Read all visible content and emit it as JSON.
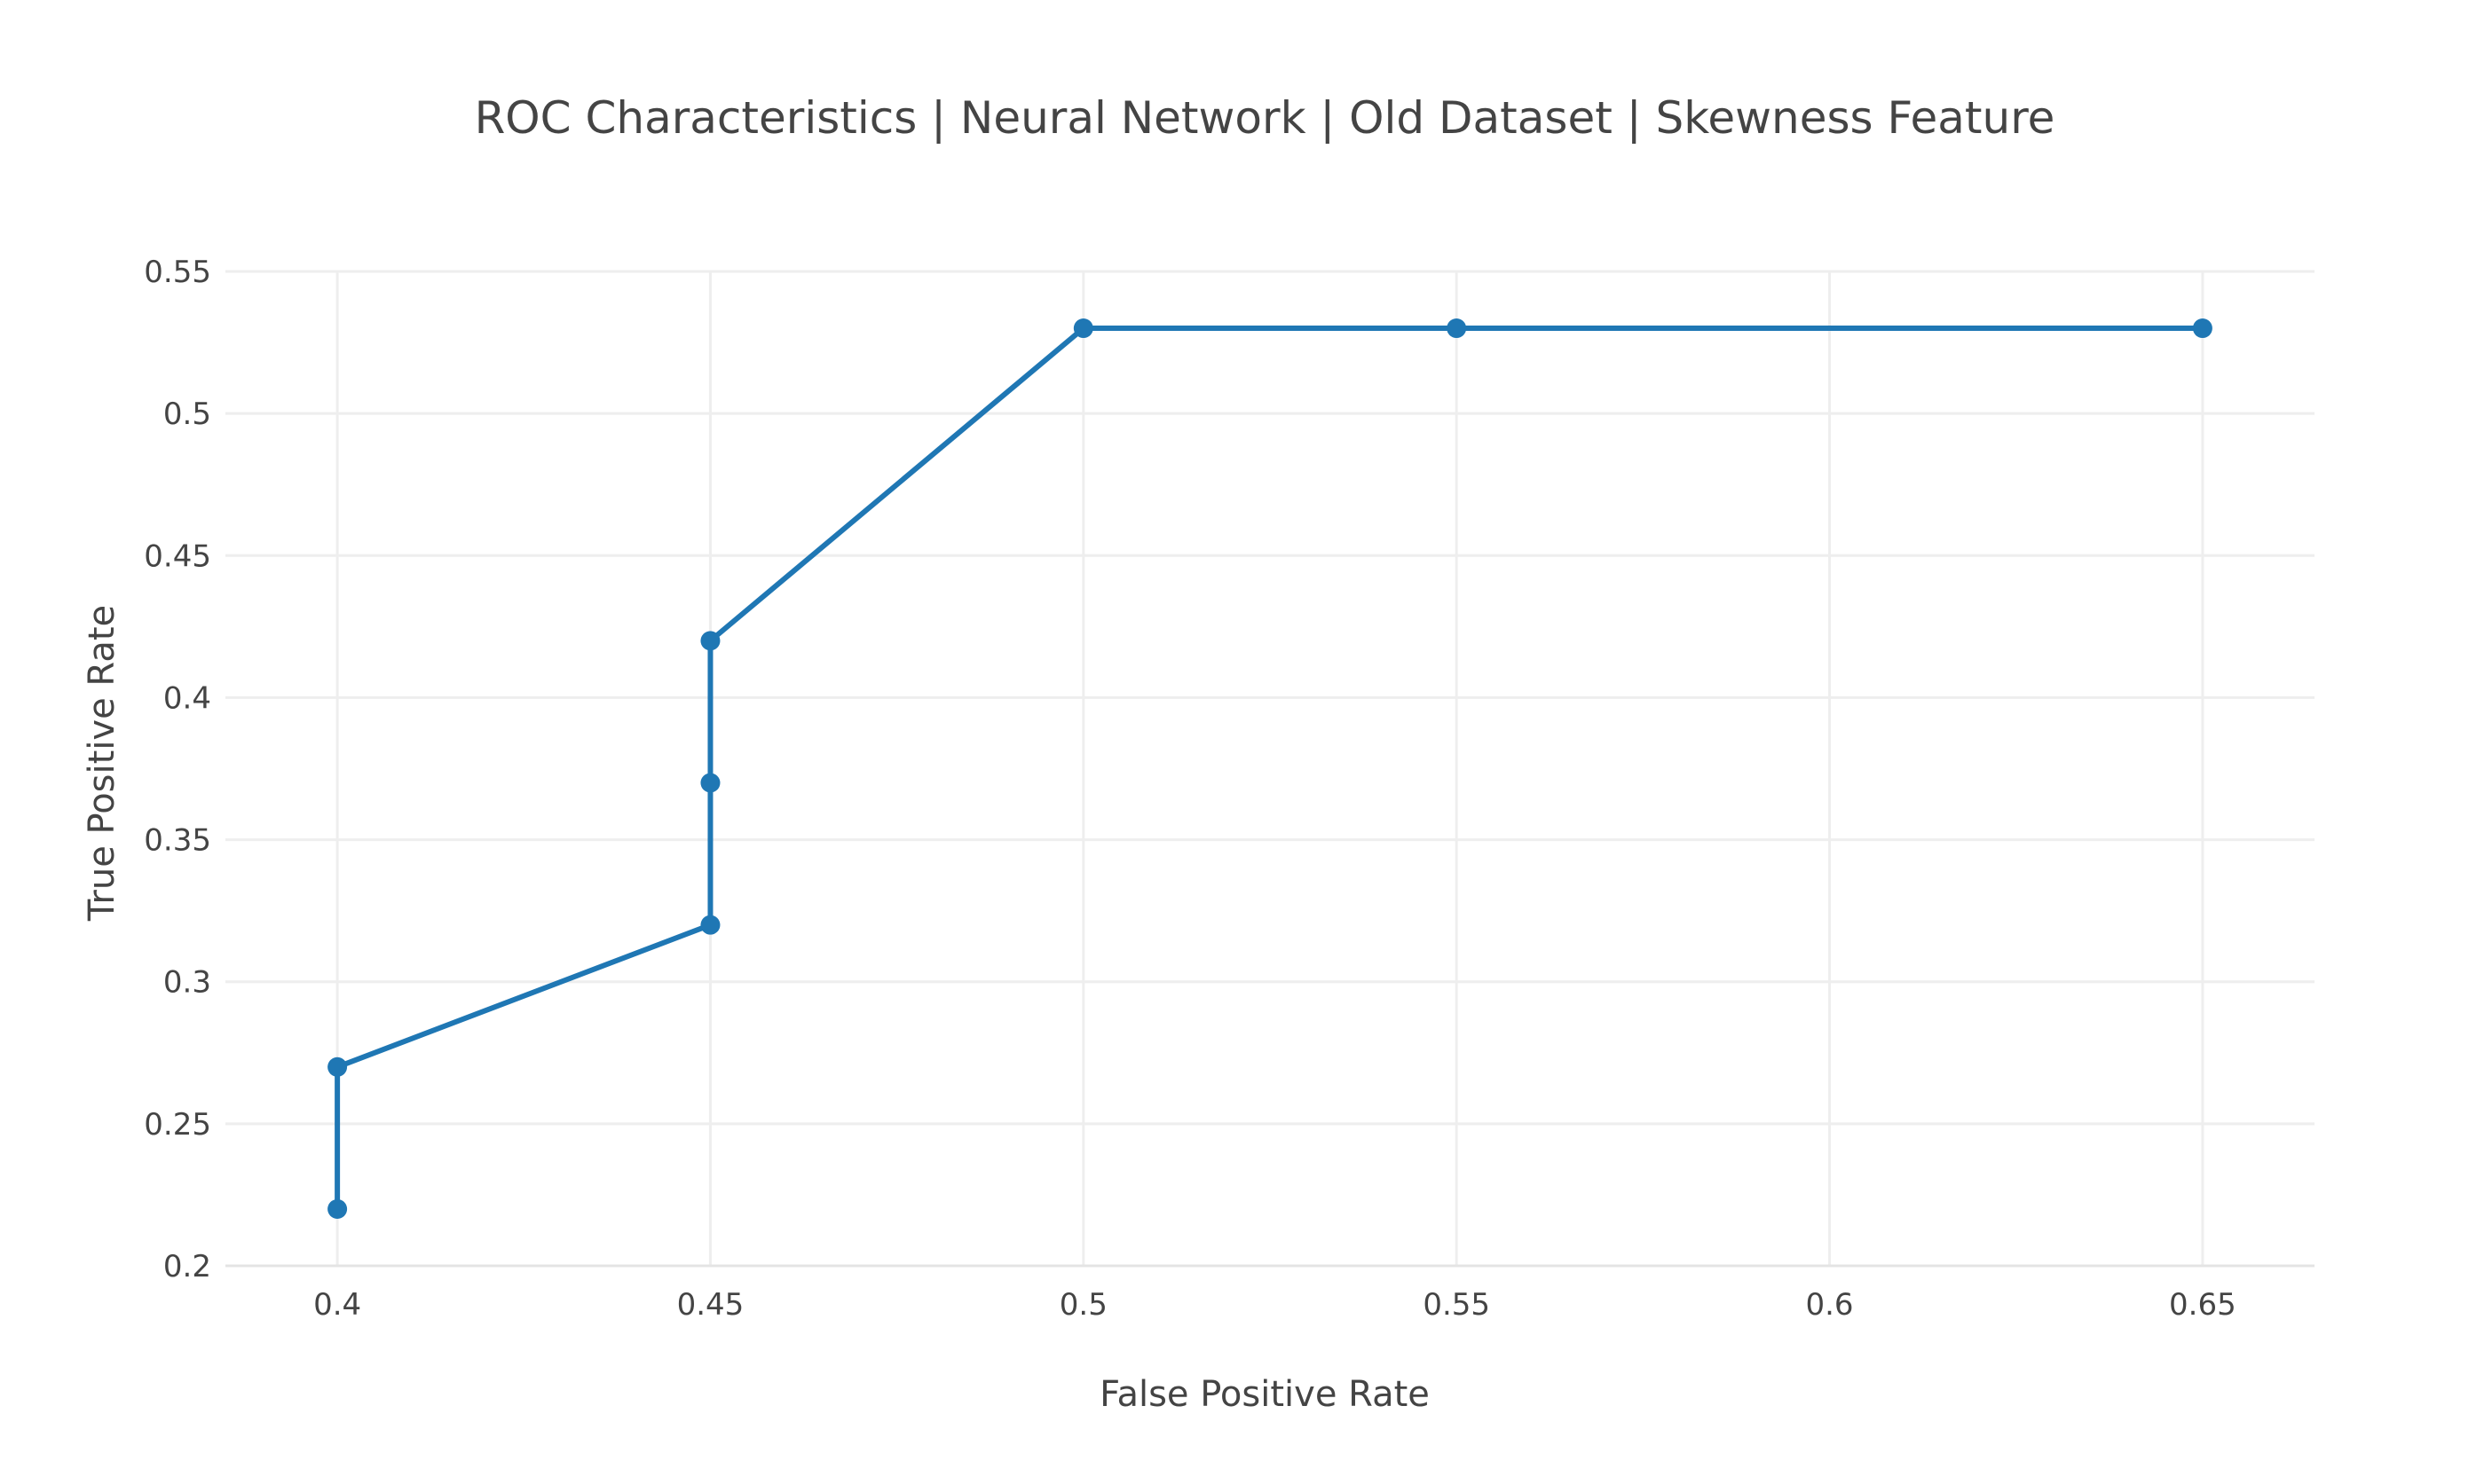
{
  "chart_data": {
    "type": "line",
    "title": "ROC Characteristics | Neural Network | Old Dataset | Skewness Feature",
    "xlabel": "False Positive Rate",
    "ylabel": "True Positive Rate",
    "xlim": [
      0.385,
      0.665
    ],
    "ylim": [
      0.2,
      0.55
    ],
    "x_ticks": [
      0.4,
      0.45,
      0.5,
      0.55,
      0.6,
      0.65
    ],
    "x_tick_labels": [
      "0.4",
      "0.45",
      "0.5",
      "0.55",
      "0.6",
      "0.65"
    ],
    "y_ticks": [
      0.2,
      0.25,
      0.3,
      0.35,
      0.4,
      0.45,
      0.5,
      0.55
    ],
    "y_tick_labels": [
      "0.2",
      "0.25",
      "0.3",
      "0.35",
      "0.4",
      "0.45",
      "0.5",
      "0.55"
    ],
    "grid": true,
    "legend": "none",
    "line_color": "#1f77b4",
    "series": [
      {
        "x": [
          0.4,
          0.4,
          0.45,
          0.45,
          0.45,
          0.5,
          0.55,
          0.65
        ],
        "y": [
          0.22,
          0.27,
          0.32,
          0.37,
          0.42,
          0.53,
          0.53,
          0.53
        ]
      }
    ]
  }
}
